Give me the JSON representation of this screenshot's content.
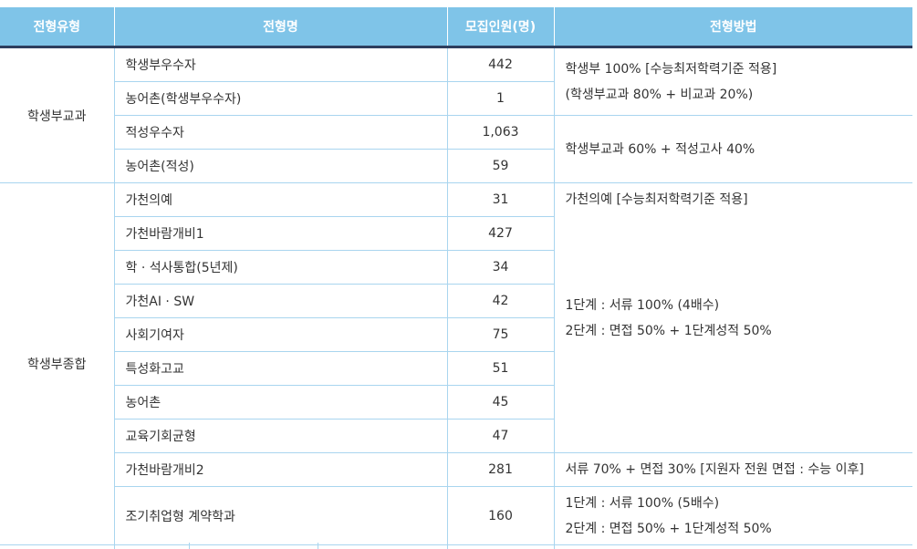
{
  "table": {
    "header": [
      "전형유형",
      "전형명",
      "모집인원(명)",
      "전형방법"
    ],
    "groups": [
      {
        "type": "학생부교과",
        "rows": [
          {
            "name": "학생부우수자",
            "count": "442"
          },
          {
            "name": "농어촌(학생부우수자)",
            "count": "1"
          },
          {
            "name": "적성우수자",
            "count": "1,063"
          },
          {
            "name": "농어촌(적성)",
            "count": "59"
          }
        ],
        "methods": [
          [
            "학생부 100% [수능최저학력기준 적용]",
            "(학생부교과 80% + 비교과 20%)"
          ],
          [
            "학생부교과 60% + 적성고사 40%"
          ]
        ]
      },
      {
        "type": "학생부종합",
        "rows": [
          {
            "name": "가천의예",
            "count": "31"
          },
          {
            "name": "가천바람개비1",
            "count": "427"
          },
          {
            "name": "학 · 석사통합(5년제)",
            "count": "34"
          },
          {
            "name": "가천AI · SW",
            "count": "42"
          },
          {
            "name": "사회기여자",
            "count": "75"
          },
          {
            "name": "특성화고교",
            "count": "51"
          },
          {
            "name": "농어촌",
            "count": "45"
          },
          {
            "name": "교육기회균형",
            "count": "47"
          },
          {
            "name": "가천바람개비2",
            "count": "281"
          },
          {
            "name": "조기취업형 계약학과",
            "count": "160"
          }
        ],
        "methods": [
          [
            "가천의예 [수능최저학력기준 적용]"
          ],
          [
            "1단계 : 서류 100% (4배수)",
            "2단계 : 면접 50% + 1단계성적 50%"
          ],
          [
            "서류 70% + 면접 30% [지원자 전원 면접 : 수능 이후]"
          ],
          [
            "1단계 : 서류 100% (5배수)",
            "2단계 : 면접 50% + 1단계성적 50%"
          ]
        ]
      }
    ]
  }
}
